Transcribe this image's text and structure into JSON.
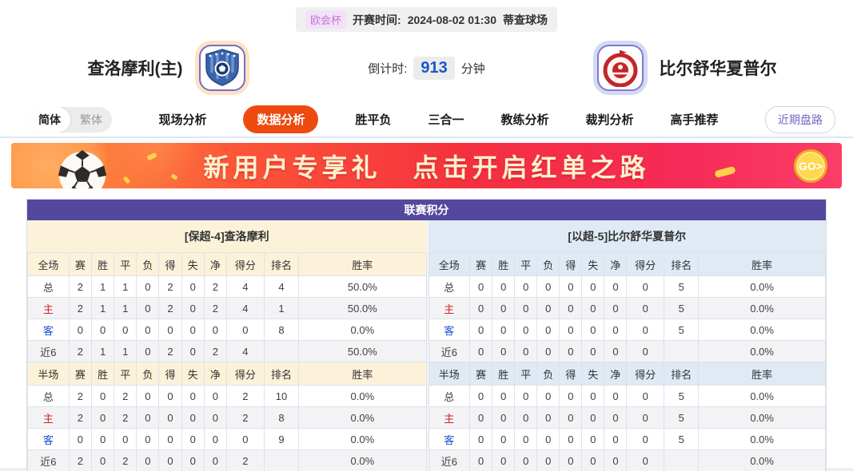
{
  "colors": {
    "accent_orange": "#ee4a10",
    "table_title_purple": "#54489e",
    "cream_header": "#fcf2da",
    "blue_header": "#dfeaf5",
    "home_row_red": "#cf2323",
    "away_row_blue": "#1d52c8",
    "countdown_blue": "#1a56c8",
    "league_badge_purple": "#c077d2",
    "banner_text_cream": "#fdf2cf"
  },
  "match_info": {
    "league": "欧会杯",
    "kickoff_label": "开赛时间:",
    "kickoff_time": "2024-08-02 01:30",
    "venue": "蒂查球场"
  },
  "teams": {
    "home": {
      "name": "查洛摩利(主)",
      "logo": "blue-shield-crest"
    },
    "away": {
      "name": "比尔舒华夏普尔",
      "logo": "red-circle-crest"
    }
  },
  "countdown": {
    "label": "倒计时:",
    "value": "913",
    "unit": "分钟"
  },
  "nav": {
    "lang_toggle": {
      "simplified": "简体",
      "traditional": "繁体",
      "active": "简体"
    },
    "tabs": [
      {
        "label": "现场分析",
        "active": false
      },
      {
        "label": "数据分析",
        "active": true
      },
      {
        "label": "胜平负",
        "active": false
      },
      {
        "label": "三合一",
        "active": false
      },
      {
        "label": "教练分析",
        "active": false
      },
      {
        "label": "裁判分析",
        "active": false
      },
      {
        "label": "高手推荐",
        "active": false
      }
    ],
    "recent_button": "近期盘路"
  },
  "banner": {
    "text1": "新用户专享礼",
    "text2": "点击开启红单之路",
    "go_label": "GO>",
    "icon": "soccer-ball"
  },
  "league_table": {
    "title": "联赛积分",
    "full_label": "全场",
    "half_label": "半场",
    "stat_columns": [
      "赛",
      "胜",
      "平",
      "负",
      "得",
      "失",
      "净",
      "得分",
      "排名",
      "胜率"
    ],
    "sides": [
      {
        "key": "home",
        "header": "[保超-4]查洛摩利",
        "theme": "cream",
        "full": [
          {
            "label": "总",
            "kind": "total",
            "cells": [
              "2",
              "1",
              "1",
              "0",
              "2",
              "0",
              "2",
              "4",
              "4",
              "50.0%"
            ]
          },
          {
            "label": "主",
            "kind": "home",
            "cells": [
              "2",
              "1",
              "1",
              "0",
              "2",
              "0",
              "2",
              "4",
              "1",
              "50.0%"
            ]
          },
          {
            "label": "客",
            "kind": "away",
            "cells": [
              "0",
              "0",
              "0",
              "0",
              "0",
              "0",
              "0",
              "0",
              "8",
              "0.0%"
            ]
          },
          {
            "label": "近6",
            "kind": "recent",
            "cells": [
              "2",
              "1",
              "1",
              "0",
              "2",
              "0",
              "2",
              "4",
              "",
              "50.0%"
            ]
          }
        ],
        "half": [
          {
            "label": "总",
            "kind": "total",
            "cells": [
              "2",
              "0",
              "2",
              "0",
              "0",
              "0",
              "0",
              "2",
              "10",
              "0.0%"
            ]
          },
          {
            "label": "主",
            "kind": "home",
            "cells": [
              "2",
              "0",
              "2",
              "0",
              "0",
              "0",
              "0",
              "2",
              "8",
              "0.0%"
            ]
          },
          {
            "label": "客",
            "kind": "away",
            "cells": [
              "0",
              "0",
              "0",
              "0",
              "0",
              "0",
              "0",
              "0",
              "9",
              "0.0%"
            ]
          },
          {
            "label": "近6",
            "kind": "recent",
            "cells": [
              "2",
              "0",
              "2",
              "0",
              "0",
              "0",
              "0",
              "2",
              "",
              "0.0%"
            ]
          }
        ]
      },
      {
        "key": "away",
        "header": "[以超-5]比尔舒华夏普尔",
        "theme": "blue",
        "full": [
          {
            "label": "总",
            "kind": "total",
            "cells": [
              "0",
              "0",
              "0",
              "0",
              "0",
              "0",
              "0",
              "0",
              "5",
              "0.0%"
            ]
          },
          {
            "label": "主",
            "kind": "home",
            "cells": [
              "0",
              "0",
              "0",
              "0",
              "0",
              "0",
              "0",
              "0",
              "5",
              "0.0%"
            ]
          },
          {
            "label": "客",
            "kind": "away",
            "cells": [
              "0",
              "0",
              "0",
              "0",
              "0",
              "0",
              "0",
              "0",
              "5",
              "0.0%"
            ]
          },
          {
            "label": "近6",
            "kind": "recent",
            "cells": [
              "0",
              "0",
              "0",
              "0",
              "0",
              "0",
              "0",
              "0",
              "",
              "0.0%"
            ]
          }
        ],
        "half": [
          {
            "label": "总",
            "kind": "total",
            "cells": [
              "0",
              "0",
              "0",
              "0",
              "0",
              "0",
              "0",
              "0",
              "5",
              "0.0%"
            ]
          },
          {
            "label": "主",
            "kind": "home",
            "cells": [
              "0",
              "0",
              "0",
              "0",
              "0",
              "0",
              "0",
              "0",
              "5",
              "0.0%"
            ]
          },
          {
            "label": "客",
            "kind": "away",
            "cells": [
              "0",
              "0",
              "0",
              "0",
              "0",
              "0",
              "0",
              "0",
              "5",
              "0.0%"
            ]
          },
          {
            "label": "近6",
            "kind": "recent",
            "cells": [
              "0",
              "0",
              "0",
              "0",
              "0",
              "0",
              "0",
              "0",
              "",
              "0.0%"
            ]
          }
        ]
      }
    ]
  }
}
